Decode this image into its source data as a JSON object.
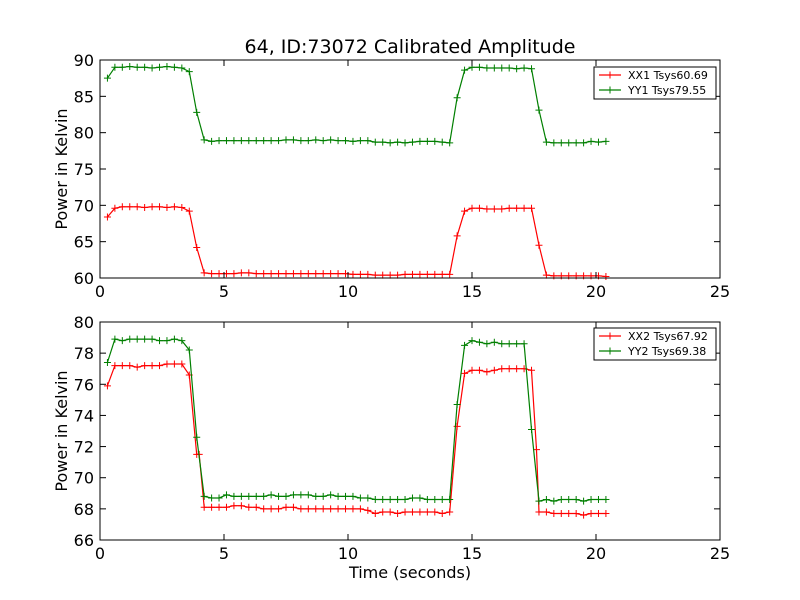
{
  "chart_data": [
    {
      "type": "line",
      "title": "64, ID:73072 Calibrated Amplitude",
      "xlabel": "",
      "ylabel": "Power in Kelvin",
      "xlim": [
        0,
        25
      ],
      "ylim": [
        60,
        90
      ],
      "xticks": [
        0,
        5,
        10,
        15,
        20,
        25
      ],
      "yticks": [
        60,
        65,
        70,
        75,
        80,
        85,
        90
      ],
      "legend_position": "top-right",
      "series": [
        {
          "name": "XX1 Tsys60.69",
          "color": "#ff0000",
          "x": [
            0.3,
            0.6,
            0.9,
            1.2,
            1.5,
            1.8,
            2.1,
            2.4,
            2.7,
            3.0,
            3.3,
            3.6,
            3.9,
            4.2,
            4.5,
            4.8,
            5.1,
            5.4,
            5.7,
            6.0,
            6.3,
            6.6,
            6.9,
            7.2,
            7.5,
            7.8,
            8.1,
            8.4,
            8.7,
            9.0,
            9.3,
            9.6,
            9.9,
            10.2,
            10.5,
            10.8,
            11.1,
            11.4,
            11.7,
            12.0,
            12.3,
            12.6,
            12.9,
            13.2,
            13.5,
            13.8,
            14.1,
            14.4,
            14.7,
            15.0,
            15.3,
            15.6,
            15.9,
            16.2,
            16.5,
            16.8,
            17.1,
            17.4,
            17.7,
            18.0,
            18.3,
            18.6,
            18.9,
            19.2,
            19.5,
            19.8,
            20.1,
            20.4
          ],
          "y": [
            68.4,
            69.6,
            69.8,
            69.8,
            69.8,
            69.7,
            69.8,
            69.8,
            69.7,
            69.8,
            69.7,
            69.2,
            64.2,
            60.7,
            60.6,
            60.6,
            60.6,
            60.6,
            60.7,
            60.7,
            60.6,
            60.6,
            60.6,
            60.6,
            60.6,
            60.6,
            60.6,
            60.6,
            60.6,
            60.6,
            60.6,
            60.6,
            60.6,
            60.5,
            60.5,
            60.5,
            60.4,
            60.4,
            60.4,
            60.4,
            60.5,
            60.5,
            60.5,
            60.5,
            60.5,
            60.5,
            60.5,
            65.8,
            69.2,
            69.6,
            69.6,
            69.5,
            69.5,
            69.5,
            69.6,
            69.6,
            69.6,
            69.6,
            64.5,
            60.4,
            60.3,
            60.3,
            60.3,
            60.3,
            60.3,
            60.3,
            60.3,
            60.2
          ]
        },
        {
          "name": "YY1 Tsys79.55",
          "color": "#007f00",
          "x": [
            0.3,
            0.6,
            0.9,
            1.2,
            1.5,
            1.8,
            2.1,
            2.4,
            2.7,
            3.0,
            3.3,
            3.6,
            3.9,
            4.2,
            4.5,
            4.8,
            5.1,
            5.4,
            5.7,
            6.0,
            6.3,
            6.6,
            6.9,
            7.2,
            7.5,
            7.8,
            8.1,
            8.4,
            8.7,
            9.0,
            9.3,
            9.6,
            9.9,
            10.2,
            10.5,
            10.8,
            11.1,
            11.4,
            11.7,
            12.0,
            12.3,
            12.6,
            12.9,
            13.2,
            13.5,
            13.8,
            14.1,
            14.4,
            14.7,
            15.0,
            15.3,
            15.6,
            15.9,
            16.2,
            16.5,
            16.8,
            17.1,
            17.4,
            17.7,
            18.0,
            18.3,
            18.6,
            18.9,
            19.2,
            19.5,
            19.8,
            20.1,
            20.4
          ],
          "y": [
            87.5,
            89.0,
            89.0,
            89.1,
            89.0,
            89.0,
            88.9,
            89.0,
            89.1,
            89.0,
            88.9,
            88.4,
            82.8,
            79.0,
            78.8,
            78.9,
            78.9,
            78.9,
            78.9,
            78.9,
            78.9,
            78.9,
            78.9,
            78.9,
            79.0,
            79.0,
            78.9,
            78.9,
            79.0,
            78.9,
            79.0,
            78.9,
            78.9,
            78.8,
            78.9,
            78.9,
            78.7,
            78.7,
            78.6,
            78.7,
            78.6,
            78.7,
            78.8,
            78.8,
            78.8,
            78.7,
            78.6,
            84.8,
            88.6,
            89.0,
            89.0,
            88.9,
            88.9,
            88.9,
            88.9,
            88.8,
            88.9,
            88.8,
            83.1,
            78.7,
            78.6,
            78.6,
            78.6,
            78.6,
            78.6,
            78.8,
            78.7,
            78.8
          ]
        }
      ]
    },
    {
      "type": "line",
      "title": "",
      "xlabel": "Time (seconds)",
      "ylabel": "Power in Kelvin",
      "xlim": [
        0,
        25
      ],
      "ylim": [
        66,
        80
      ],
      "xticks": [
        0,
        5,
        10,
        15,
        20,
        25
      ],
      "yticks": [
        66,
        68,
        70,
        72,
        74,
        76,
        78,
        80
      ],
      "legend_position": "top-right",
      "series": [
        {
          "name": "XX2 Tsys67.92",
          "color": "#ff0000",
          "x": [
            0.3,
            0.6,
            0.9,
            1.2,
            1.5,
            1.8,
            2.1,
            2.4,
            2.7,
            3.0,
            3.3,
            3.6,
            3.9,
            4.0,
            4.2,
            4.5,
            4.8,
            5.1,
            5.4,
            5.7,
            6.0,
            6.3,
            6.6,
            6.9,
            7.2,
            7.5,
            7.8,
            8.1,
            8.4,
            8.7,
            9.0,
            9.3,
            9.6,
            9.9,
            10.2,
            10.5,
            10.8,
            11.1,
            11.4,
            11.7,
            12.0,
            12.3,
            12.6,
            12.9,
            13.2,
            13.5,
            13.8,
            14.1,
            14.4,
            14.7,
            15.0,
            15.3,
            15.6,
            15.9,
            16.2,
            16.5,
            16.8,
            17.1,
            17.4,
            17.6,
            17.7,
            18.0,
            18.3,
            18.6,
            18.9,
            19.2,
            19.5,
            19.8,
            20.1,
            20.4
          ],
          "y": [
            75.9,
            77.2,
            77.2,
            77.2,
            77.1,
            77.2,
            77.2,
            77.2,
            77.3,
            77.3,
            77.3,
            76.6,
            71.5,
            71.5,
            68.1,
            68.1,
            68.1,
            68.1,
            68.2,
            68.2,
            68.1,
            68.1,
            68.0,
            68.0,
            68.0,
            68.1,
            68.1,
            68.0,
            68.0,
            68.0,
            68.0,
            68.0,
            68.0,
            68.0,
            68.0,
            68.0,
            67.9,
            67.7,
            67.8,
            67.8,
            67.7,
            67.8,
            67.8,
            67.8,
            67.8,
            67.8,
            67.7,
            67.8,
            73.3,
            76.7,
            76.9,
            76.9,
            76.8,
            76.9,
            77.0,
            77.0,
            77.0,
            77.0,
            76.9,
            71.8,
            67.8,
            67.8,
            67.7,
            67.7,
            67.7,
            67.7,
            67.6,
            67.7,
            67.7,
            67.7
          ]
        },
        {
          "name": "YY2 Tsys69.38",
          "color": "#007f00",
          "x": [
            0.3,
            0.6,
            0.9,
            1.2,
            1.5,
            1.8,
            2.1,
            2.4,
            2.7,
            3.0,
            3.3,
            3.6,
            3.9,
            4.2,
            4.5,
            4.8,
            5.1,
            5.4,
            5.7,
            6.0,
            6.3,
            6.6,
            6.9,
            7.2,
            7.5,
            7.8,
            8.1,
            8.4,
            8.7,
            9.0,
            9.3,
            9.6,
            9.9,
            10.2,
            10.5,
            10.8,
            11.1,
            11.4,
            11.7,
            12.0,
            12.3,
            12.6,
            12.9,
            13.2,
            13.5,
            13.8,
            14.1,
            14.4,
            14.7,
            15.0,
            15.3,
            15.6,
            15.9,
            16.2,
            16.5,
            16.8,
            17.1,
            17.4,
            17.7,
            18.0,
            18.3,
            18.6,
            18.9,
            19.2,
            19.5,
            19.8,
            20.1,
            20.4
          ],
          "y": [
            77.4,
            78.9,
            78.8,
            78.9,
            78.9,
            78.9,
            78.9,
            78.8,
            78.8,
            78.9,
            78.8,
            78.2,
            72.6,
            68.8,
            68.7,
            68.7,
            68.9,
            68.8,
            68.8,
            68.8,
            68.8,
            68.8,
            68.9,
            68.8,
            68.8,
            68.9,
            68.9,
            68.9,
            68.8,
            68.8,
            68.9,
            68.8,
            68.8,
            68.8,
            68.7,
            68.7,
            68.6,
            68.6,
            68.6,
            68.6,
            68.6,
            68.7,
            68.7,
            68.6,
            68.6,
            68.6,
            68.6,
            74.7,
            78.5,
            78.8,
            78.7,
            78.6,
            78.7,
            78.6,
            78.6,
            78.6,
            78.6,
            73.1,
            68.5,
            68.6,
            68.5,
            68.6,
            68.6,
            68.6,
            68.5,
            68.6,
            68.6,
            68.6
          ]
        }
      ]
    }
  ]
}
